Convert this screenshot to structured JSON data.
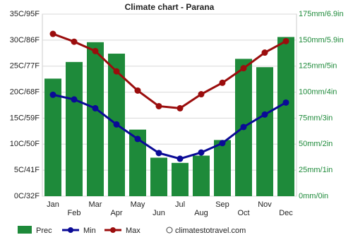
{
  "chart_data": {
    "type": "combo",
    "title": "Climate chart - Parana",
    "categories": [
      "Jan",
      "Feb",
      "Mar",
      "Apr",
      "May",
      "Jun",
      "Jul",
      "Aug",
      "Sep",
      "Oct",
      "Nov",
      "Dec"
    ],
    "series": [
      {
        "name": "Prec",
        "type": "bar",
        "axis": "y2",
        "color": "#1e8a3a",
        "values": [
          113,
          129,
          148,
          137,
          64,
          37,
          32,
          39,
          54,
          132,
          124,
          153
        ]
      },
      {
        "name": "Min",
        "type": "line",
        "color": "#0a0a96",
        "values": [
          19.5,
          18.6,
          16.9,
          13.8,
          11,
          8.3,
          7.2,
          8.4,
          10.2,
          13.3,
          15.7,
          18
        ]
      },
      {
        "name": "Max",
        "type": "line",
        "color": "#9b0d0d",
        "values": [
          31.2,
          29.7,
          27.9,
          24,
          20.3,
          17.3,
          16.9,
          19.6,
          21.8,
          24.6,
          27.6,
          29.8
        ]
      }
    ],
    "ylim": [
      0,
      35
    ],
    "yticks": [
      {
        "value": 0,
        "label": "0C/32F"
      },
      {
        "value": 5,
        "label": "5C/41F"
      },
      {
        "value": 10,
        "label": "10C/50F"
      },
      {
        "value": 15,
        "label": "15C/59F"
      },
      {
        "value": 20,
        "label": "20C/68F"
      },
      {
        "value": 25,
        "label": "25C/77F"
      },
      {
        "value": 30,
        "label": "30C/86F"
      },
      {
        "value": 35,
        "label": "35C/95F"
      }
    ],
    "y2lim": [
      0,
      175
    ],
    "y2ticks": [
      {
        "value": 0,
        "label": "0mm/0in"
      },
      {
        "value": 25,
        "label": "25mm/1in"
      },
      {
        "value": 50,
        "label": "50mm/2in"
      },
      {
        "value": 75,
        "label": "75mm/3in"
      },
      {
        "value": 100,
        "label": "100mm/4in"
      },
      {
        "value": 125,
        "label": "125mm/5in"
      },
      {
        "value": 150,
        "label": "150mm/5.9in"
      },
      {
        "value": 175,
        "label": "175mm/6.9in"
      }
    ],
    "grid": true,
    "source": "climatestotravel.com"
  }
}
